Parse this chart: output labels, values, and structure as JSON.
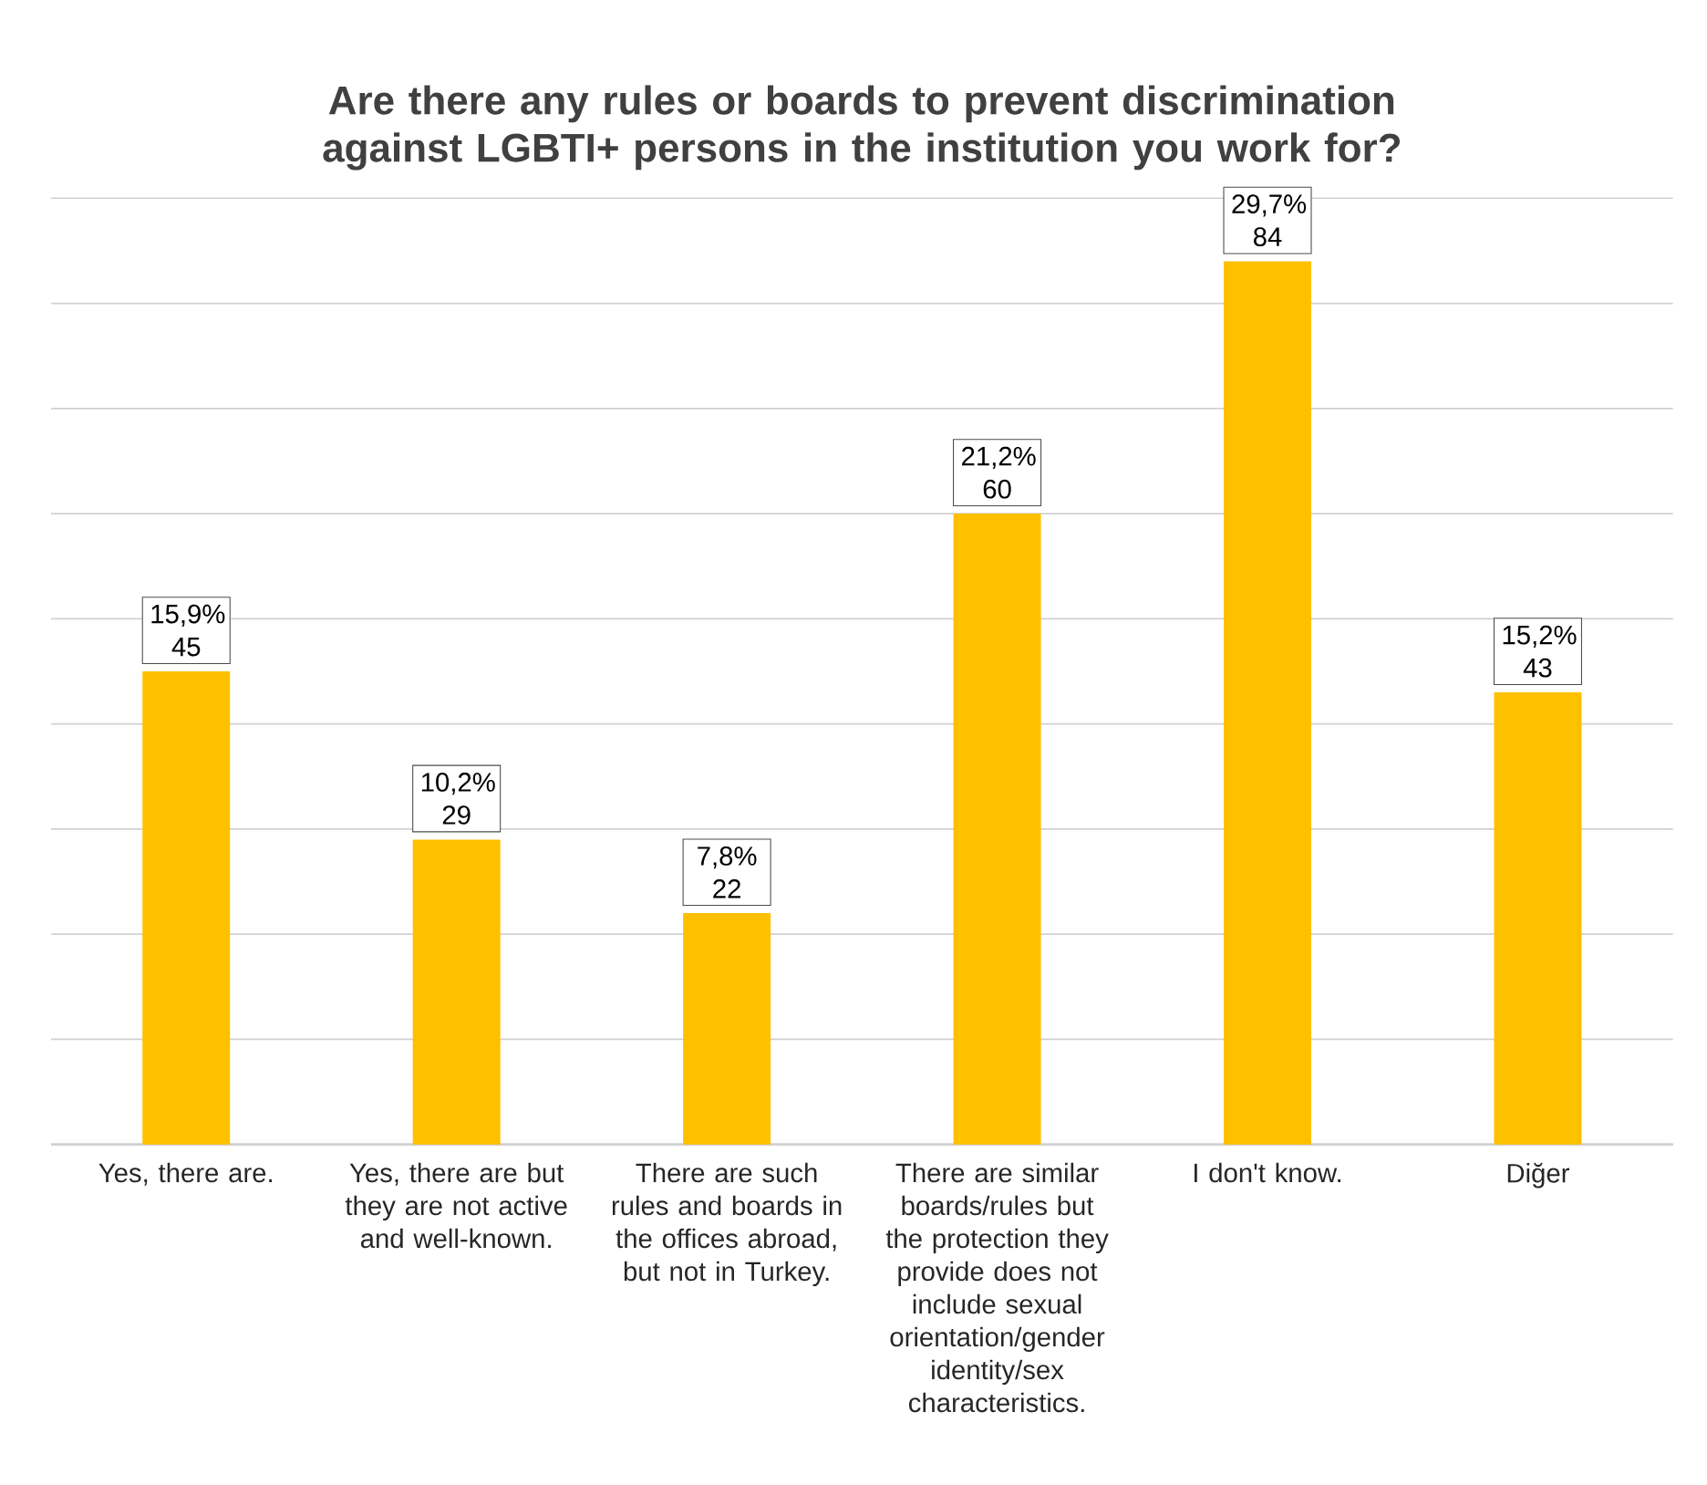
{
  "chart_data": {
    "type": "bar",
    "title": "Are there any rules or boards to prevent discrimination against LGBTI+ persons in the institution you work for?",
    "categories": [
      "Yes, there are.",
      "Yes, there are but they are not active and well-known.",
      "There are such rules and boards in the offices abroad, but not in Turkey.",
      "There are similar boards/rules but the protection they provide does not include sexual orientation/gender identity/sex characteristics.",
      "I don't know.",
      "Diğer"
    ],
    "values": [
      45,
      29,
      22,
      60,
      84,
      43
    ],
    "value_labels": [
      "15,9% 45",
      "10,2% 29",
      "7,8% 22",
      "21,2% 60",
      "29,7% 84",
      "15,2% 43"
    ],
    "color": "#ffc000",
    "ylim": [
      0,
      90
    ],
    "yticks": [
      {
        "value": 0,
        "label": null
      },
      {
        "value": 10,
        "label": null
      },
      {
        "value": 20,
        "label": null
      },
      {
        "value": 30,
        "label": null
      },
      {
        "value": 40,
        "label": null
      },
      {
        "value": 50,
        "label": null
      },
      {
        "value": 60,
        "label": null
      },
      {
        "value": 70,
        "label": null
      },
      {
        "value": 80,
        "label": null
      },
      {
        "value": 90,
        "label": null
      }
    ],
    "tick_labels": "x",
    "grid": "y"
  }
}
